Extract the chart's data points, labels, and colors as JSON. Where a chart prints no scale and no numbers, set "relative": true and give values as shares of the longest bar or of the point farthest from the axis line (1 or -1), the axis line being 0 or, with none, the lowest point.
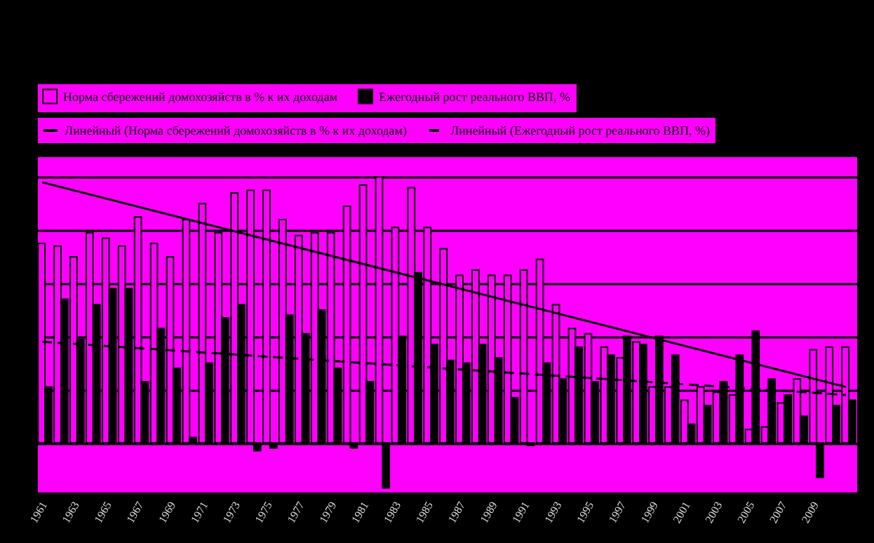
{
  "chart_data": {
    "type": "bar",
    "relative": true,
    "legend": "top",
    "grid": "y",
    "marker": "none",
    "categories": [
      "1961",
      null,
      "1963",
      null,
      "1965",
      null,
      "1967",
      null,
      "1969",
      null,
      "1971",
      null,
      "1973",
      null,
      "1975",
      null,
      "1977",
      null,
      "1979",
      null,
      "1981",
      null,
      "1983",
      null,
      "1985",
      null,
      "1987",
      null,
      "1989",
      null,
      "1991",
      null,
      "1993",
      null,
      "1995",
      null,
      "1997",
      null,
      "1999",
      null,
      "2001",
      null,
      "2003",
      null,
      "2005",
      null,
      "2007",
      null,
      "2009",
      null,
      null
    ],
    "series": [
      {
        "name": "Норма сбережений домохозяйств в % к их доходам",
        "color": "#ff00ff",
        "values": [
          0.75,
          0.74,
          0.7,
          0.79,
          0.77,
          0.74,
          0.85,
          0.75,
          0.7,
          0.84,
          0.9,
          0.79,
          0.94,
          0.95,
          0.95,
          0.84,
          0.78,
          0.79,
          0.79,
          0.89,
          0.97,
          1,
          0.81,
          0.96,
          0.81,
          0.73,
          0.63,
          0.65,
          0.63,
          0.63,
          0.65,
          0.69,
          0.52,
          0.43,
          0.41,
          0.36,
          0.32,
          0.38,
          0.21,
          0.21,
          0.16,
          0.21,
          0.19,
          0.18,
          0.05,
          0.06,
          0.15,
          0.24,
          0.35,
          0.36,
          0.36
        ]
      },
      {
        "name": "Ежегодный рост реального ВВП, %",
        "color": "#000000",
        "values": [
          0.21,
          0.54,
          0.39,
          0.52,
          0.58,
          0.58,
          0.23,
          0.43,
          0.28,
          0.02,
          0.3,
          0.47,
          0.52,
          -0.03,
          -0.02,
          0.48,
          0.41,
          0.5,
          0.28,
          -0.02,
          0.23,
          -0.17,
          0.4,
          0.64,
          0.37,
          0.31,
          0.3,
          0.37,
          0.32,
          0.17,
          -0.01,
          0.3,
          0.24,
          0.36,
          0.23,
          0.33,
          0.4,
          0.37,
          0.4,
          0.33,
          0.07,
          0.14,
          0.23,
          0.33,
          0.42,
          0.24,
          0.18,
          0.1,
          -0.13,
          0.14,
          0.16
        ]
      },
      {
        "name": "Линейный (Норма сбережений домохозяйств в % к их доходам)",
        "type": "line",
        "line_style": "solid",
        "color": "#000000",
        "values": [
          0.98,
          null,
          null,
          null,
          null,
          null,
          null,
          null,
          null,
          null,
          null,
          null,
          null,
          null,
          null,
          null,
          null,
          null,
          null,
          null,
          null,
          null,
          null,
          null,
          null,
          null,
          null,
          null,
          null,
          null,
          null,
          null,
          null,
          null,
          null,
          null,
          null,
          null,
          null,
          null,
          null,
          null,
          null,
          null,
          null,
          null,
          null,
          null,
          null,
          null,
          0.21
        ]
      },
      {
        "name": "Линейный (Ежегодный рост реального ВВП, %)",
        "type": "line",
        "line_style": "dashed",
        "color": "#000000",
        "values": [
          0.38,
          null,
          null,
          null,
          null,
          null,
          null,
          null,
          null,
          null,
          null,
          null,
          null,
          null,
          null,
          null,
          null,
          null,
          null,
          null,
          null,
          null,
          null,
          null,
          null,
          null,
          null,
          null,
          null,
          null,
          null,
          null,
          null,
          null,
          null,
          null,
          null,
          null,
          null,
          null,
          null,
          null,
          null,
          null,
          null,
          null,
          null,
          null,
          null,
          null,
          0.18
        ]
      }
    ]
  }
}
